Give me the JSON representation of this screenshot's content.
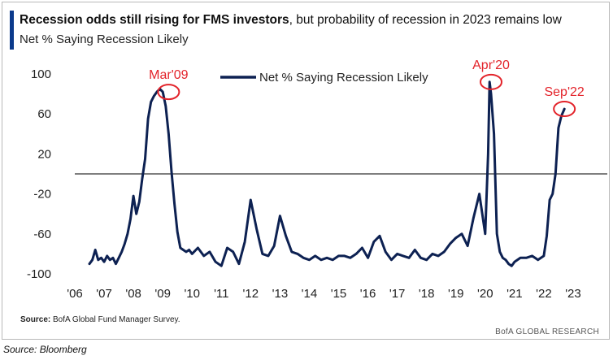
{
  "header": {
    "title_bold": "Recession odds still rising for FMS investors",
    "title_rest": ", but probability of recession in 2023 remains low",
    "subtitle": "Net % Saying Recession Likely"
  },
  "footer": {
    "source_label": "Source:",
    "source_text": " BofA Global Fund Manager Survey.",
    "brand": "BofA GLOBAL RESEARCH",
    "external_source": "Source: Bloomberg"
  },
  "colors": {
    "line": "#0d2152",
    "annotation": "#e3232a",
    "accent": "#0b3a8c",
    "zero_line": "#555555"
  },
  "chart_data": {
    "type": "line",
    "title": "Net % Saying Recession Likely",
    "xlabel": "",
    "ylabel": "",
    "xlim": [
      2006,
      2023.5
    ],
    "ylim": [
      -100,
      100
    ],
    "y_ticks": [
      100,
      60,
      20,
      -20,
      -60,
      -100
    ],
    "x_ticks": [
      {
        "value": 2006,
        "label": "'06"
      },
      {
        "value": 2007,
        "label": "'07"
      },
      {
        "value": 2008,
        "label": "'08"
      },
      {
        "value": 2009,
        "label": "'09"
      },
      {
        "value": 2010,
        "label": "'10"
      },
      {
        "value": 2011,
        "label": "'11"
      },
      {
        "value": 2012,
        "label": "'12"
      },
      {
        "value": 2013,
        "label": "'13"
      },
      {
        "value": 2014,
        "label": "'14"
      },
      {
        "value": 2015,
        "label": "'15"
      },
      {
        "value": 2016,
        "label": "'16"
      },
      {
        "value": 2017,
        "label": "'17"
      },
      {
        "value": 2018,
        "label": "'18"
      },
      {
        "value": 2019,
        "label": "'19"
      },
      {
        "value": 2020,
        "label": "'20"
      },
      {
        "value": 2021,
        "label": "'21"
      },
      {
        "value": 2022,
        "label": "'22"
      },
      {
        "value": 2023,
        "label": "'23"
      }
    ],
    "reference_line": 0,
    "legend": {
      "label": "Net % Saying Recession Likely",
      "position": "top-center"
    },
    "series": [
      {
        "name": "Net % Saying Recession Likely",
        "x": [
          2006.5,
          2006.6,
          2006.7,
          2006.8,
          2006.9,
          2007.0,
          2007.1,
          2007.2,
          2007.3,
          2007.4,
          2007.5,
          2007.6,
          2007.7,
          2007.8,
          2007.9,
          2008.0,
          2008.1,
          2008.2,
          2008.3,
          2008.4,
          2008.5,
          2008.6,
          2008.7,
          2008.8,
          2008.9,
          2009.0,
          2009.1,
          2009.2,
          2009.3,
          2009.4,
          2009.5,
          2009.6,
          2009.7,
          2009.8,
          2009.9,
          2010.0,
          2010.2,
          2010.4,
          2010.6,
          2010.8,
          2011.0,
          2011.2,
          2011.4,
          2011.6,
          2011.8,
          2012.0,
          2012.2,
          2012.4,
          2012.6,
          2012.8,
          2013.0,
          2013.2,
          2013.4,
          2013.6,
          2013.8,
          2014.0,
          2014.2,
          2014.4,
          2014.6,
          2014.8,
          2015.0,
          2015.2,
          2015.4,
          2015.6,
          2015.8,
          2016.0,
          2016.2,
          2016.4,
          2016.6,
          2016.8,
          2017.0,
          2017.2,
          2017.4,
          2017.6,
          2017.8,
          2018.0,
          2018.2,
          2018.4,
          2018.6,
          2018.8,
          2019.0,
          2019.2,
          2019.4,
          2019.6,
          2019.8,
          2019.9,
          2020.0,
          2020.1,
          2020.15,
          2020.2,
          2020.3,
          2020.4,
          2020.5,
          2020.6,
          2020.7,
          2020.8,
          2020.9,
          2021.0,
          2021.2,
          2021.4,
          2021.6,
          2021.8,
          2022.0,
          2022.1,
          2022.2,
          2022.3,
          2022.4,
          2022.5,
          2022.6,
          2022.7
        ],
        "values": [
          -90,
          -86,
          -76,
          -86,
          -84,
          -88,
          -82,
          -86,
          -84,
          -90,
          -84,
          -78,
          -70,
          -60,
          -45,
          -22,
          -40,
          -28,
          -5,
          15,
          55,
          72,
          78,
          82,
          85,
          82,
          68,
          40,
          2,
          -30,
          -58,
          -74,
          -76,
          -78,
          -76,
          -80,
          -74,
          -82,
          -78,
          -88,
          -92,
          -74,
          -78,
          -90,
          -68,
          -26,
          -55,
          -80,
          -82,
          -72,
          -42,
          -62,
          -78,
          -80,
          -84,
          -86,
          -82,
          -86,
          -84,
          -86,
          -82,
          -82,
          -84,
          -80,
          -74,
          -84,
          -68,
          -62,
          -78,
          -86,
          -80,
          -82,
          -84,
          -76,
          -84,
          -86,
          -80,
          -82,
          -78,
          -70,
          -64,
          -60,
          -72,
          -44,
          -20,
          -40,
          -60,
          20,
          92,
          80,
          40,
          -60,
          -78,
          -84,
          -86,
          -90,
          -92,
          -88,
          -84,
          -84,
          -82,
          -86,
          -82,
          -62,
          -26,
          -20,
          0,
          46,
          58,
          65
        ]
      }
    ],
    "annotations": [
      {
        "label": "Mar'09",
        "x": 2009.2,
        "y": 82
      },
      {
        "label": "Apr'20",
        "x": 2020.2,
        "y": 92
      },
      {
        "label": "Sep'22",
        "x": 2022.7,
        "y": 65
      }
    ]
  }
}
